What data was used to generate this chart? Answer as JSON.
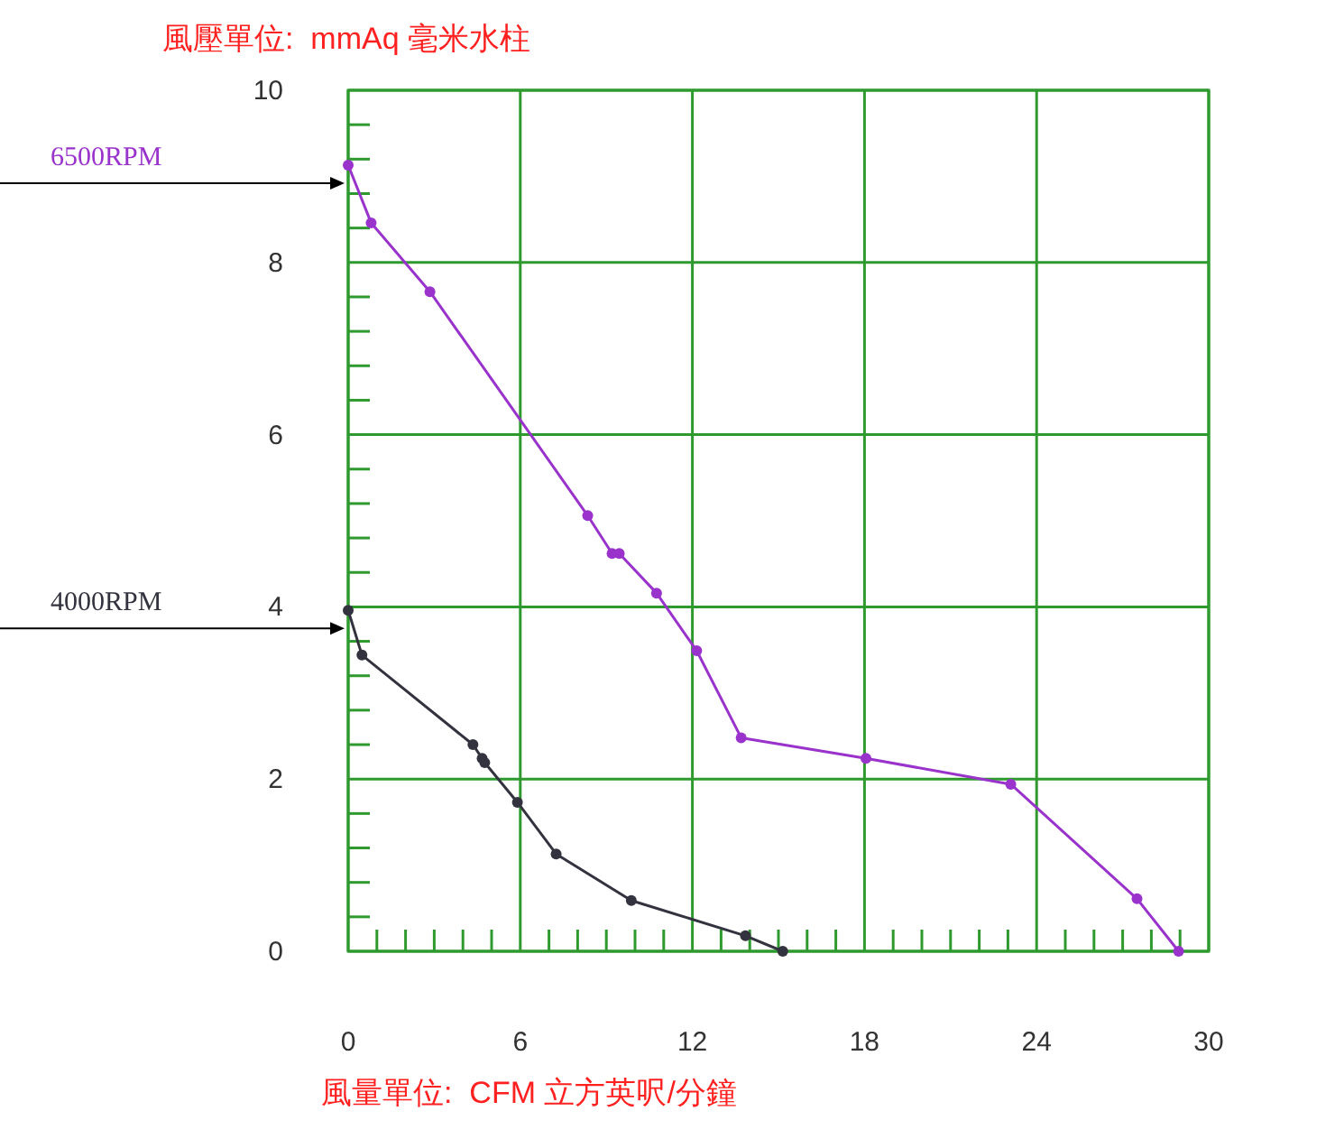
{
  "chart_data": {
    "type": "line",
    "ylabel": "風壓單位:  mmAq 毫米水柱",
    "xlabel": "風量單位:  CFM 立方英呎/分鐘",
    "xlim": [
      0,
      30
    ],
    "xticks": [
      0,
      6,
      12,
      18,
      24,
      30
    ],
    "ylim": [
      0,
      10
    ],
    "yticks": [
      0,
      2,
      4,
      6,
      8,
      10
    ],
    "grid": true,
    "marker": "circle",
    "line_style": "solid",
    "series": [
      {
        "name": "6500RPM",
        "color": "#9933cc",
        "x": [
          0,
          0.8,
          2.85,
          8.35,
          9.2,
          9.45,
          10.75,
          12.15,
          13.7,
          18.05,
          23.1,
          27.5,
          28.95
        ],
        "values": [
          9.13,
          8.46,
          7.66,
          5.06,
          4.62,
          4.62,
          4.16,
          3.49,
          2.48,
          2.24,
          1.94,
          0.61,
          0
        ]
      },
      {
        "name": "4000RPM",
        "color": "#33333f",
        "x": [
          0,
          0.48,
          4.35,
          4.67,
          4.76,
          5.9,
          7.25,
          9.87,
          13.85,
          15.15
        ],
        "values": [
          3.96,
          3.44,
          2.4,
          2.24,
          2.19,
          1.73,
          1.13,
          0.59,
          0.18,
          0
        ]
      }
    ]
  }
}
